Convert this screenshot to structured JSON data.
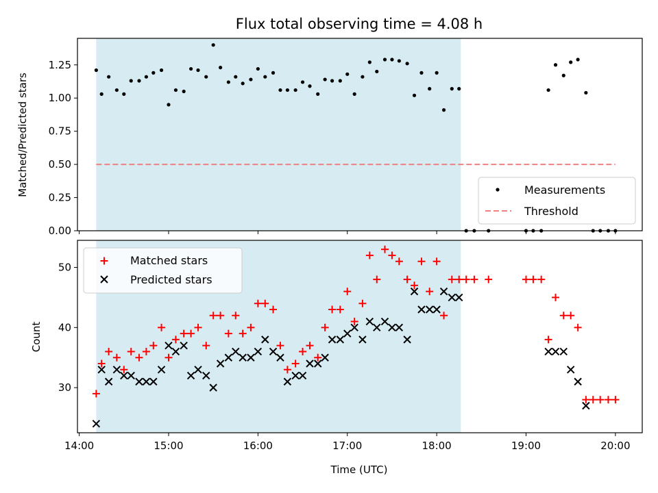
{
  "chart_data": [
    {
      "type": "scatter",
      "panel": "top",
      "title": "Flux total observing time = 4.08 h",
      "xlabel": "",
      "ylabel": "Matched/Predicted stars",
      "xlim_hours": [
        13.98,
        20.3
      ],
      "ylim": [
        0.0,
        1.45
      ],
      "yticks": [
        0.0,
        0.25,
        0.5,
        0.75,
        1.0,
        1.25
      ],
      "ytick_labels": [
        "0.00",
        "0.25",
        "0.50",
        "0.75",
        "1.00",
        "1.25"
      ],
      "shaded_span_hours": [
        14.19,
        18.27
      ],
      "threshold": {
        "y": 0.5,
        "x_range": [
          14.19,
          20.0
        ],
        "color": "#f08080"
      },
      "legend_position": "lower right",
      "legend": [
        {
          "label": "Measurements",
          "marker": "dot",
          "color": "#000000"
        },
        {
          "label": "Threshold",
          "marker": "dashed-line",
          "color": "#f08080"
        }
      ],
      "series": [
        {
          "name": "Measurements",
          "color": "#000000",
          "x": [
            14.19,
            14.25,
            14.33,
            14.42,
            14.5,
            14.58,
            14.67,
            14.75,
            14.83,
            14.92,
            15.0,
            15.08,
            15.17,
            15.25,
            15.33,
            15.42,
            15.5,
            15.58,
            15.67,
            15.75,
            15.83,
            15.92,
            16.0,
            16.08,
            16.17,
            16.25,
            16.33,
            16.42,
            16.5,
            16.58,
            16.67,
            16.75,
            16.83,
            16.92,
            17.0,
            17.08,
            17.17,
            17.25,
            17.33,
            17.42,
            17.5,
            17.58,
            17.67,
            17.75,
            17.83,
            17.92,
            18.0,
            18.08,
            18.17,
            18.25,
            18.33,
            18.42,
            18.58,
            19.0,
            19.08,
            19.17,
            19.25,
            19.33,
            19.42,
            19.5,
            19.58,
            19.67,
            19.75,
            19.83,
            19.92,
            20.0
          ],
          "y": [
            1.21,
            1.03,
            1.16,
            1.06,
            1.03,
            1.13,
            1.13,
            1.16,
            1.19,
            1.21,
            0.95,
            1.06,
            1.05,
            1.22,
            1.21,
            1.16,
            1.4,
            1.23,
            1.12,
            1.16,
            1.11,
            1.14,
            1.22,
            1.16,
            1.19,
            1.06,
            1.06,
            1.06,
            1.12,
            1.09,
            1.03,
            1.14,
            1.13,
            1.13,
            1.18,
            1.03,
            1.16,
            1.27,
            1.2,
            1.29,
            1.29,
            1.28,
            1.26,
            1.02,
            1.19,
            1.07,
            1.19,
            0.91,
            1.07,
            1.07,
            0.0,
            0.0,
            0.0,
            0.0,
            0.0,
            0.0,
            1.06,
            1.25,
            1.17,
            1.27,
            1.29,
            1.04,
            0.0,
            0.0,
            0.0,
            0.0
          ]
        }
      ]
    },
    {
      "type": "scatter",
      "panel": "bottom",
      "title": "",
      "xlabel": "Time (UTC)",
      "ylabel": "Count",
      "xlim_hours": [
        13.98,
        20.3
      ],
      "ylim": [
        22.5,
        54.5
      ],
      "yticks": [
        30,
        40,
        50
      ],
      "ytick_labels": [
        "30",
        "40",
        "50"
      ],
      "xticks_hours": [
        14,
        15,
        16,
        17,
        18,
        19,
        20
      ],
      "xtick_labels": [
        "14:00",
        "15:00",
        "16:00",
        "17:00",
        "18:00",
        "19:00",
        "20:00"
      ],
      "shaded_span_hours": [
        14.19,
        18.27
      ],
      "legend_position": "upper left",
      "legend": [
        {
          "label": "Matched stars",
          "marker": "plus",
          "color": "#ff0000"
        },
        {
          "label": "Predicted stars",
          "marker": "x",
          "color": "#000000"
        }
      ],
      "series": [
        {
          "name": "Matched stars",
          "marker": "plus",
          "color": "#ff0000",
          "x": [
            14.19,
            14.25,
            14.33,
            14.42,
            14.5,
            14.58,
            14.67,
            14.75,
            14.83,
            14.92,
            15.0,
            15.08,
            15.17,
            15.25,
            15.33,
            15.42,
            15.5,
            15.58,
            15.67,
            15.75,
            15.83,
            15.92,
            16.0,
            16.08,
            16.17,
            16.25,
            16.33,
            16.42,
            16.5,
            16.58,
            16.67,
            16.75,
            16.83,
            16.92,
            17.0,
            17.08,
            17.17,
            17.25,
            17.33,
            17.42,
            17.5,
            17.58,
            17.67,
            17.75,
            17.83,
            17.92,
            18.0,
            18.08,
            18.17,
            18.25,
            18.33,
            18.42,
            18.58,
            19.0,
            19.08,
            19.17,
            19.25,
            19.33,
            19.42,
            19.5,
            19.58,
            19.67,
            19.75,
            19.83,
            19.92,
            20.0
          ],
          "y": [
            29,
            34,
            36,
            35,
            33,
            36,
            35,
            36,
            37,
            40,
            35,
            38,
            39,
            39,
            40,
            37,
            42,
            42,
            39,
            42,
            39,
            40,
            44,
            44,
            43,
            37,
            33,
            34,
            36,
            37,
            35,
            40,
            43,
            43,
            46,
            41,
            44,
            52,
            48,
            53,
            52,
            51,
            48,
            47,
            51,
            46,
            51,
            42,
            48,
            48,
            48,
            48,
            48,
            48,
            48,
            48,
            38,
            45,
            42,
            42,
            40,
            28,
            28,
            28,
            28,
            28
          ]
        },
        {
          "name": "Predicted stars",
          "marker": "x",
          "color": "#000000",
          "x": [
            14.19,
            14.25,
            14.33,
            14.42,
            14.5,
            14.58,
            14.67,
            14.75,
            14.83,
            14.92,
            15.0,
            15.08,
            15.17,
            15.25,
            15.33,
            15.42,
            15.5,
            15.58,
            15.67,
            15.75,
            15.83,
            15.92,
            16.0,
            16.08,
            16.17,
            16.25,
            16.33,
            16.42,
            16.5,
            16.58,
            16.67,
            16.75,
            16.83,
            16.92,
            17.0,
            17.08,
            17.17,
            17.25,
            17.33,
            17.42,
            17.5,
            17.58,
            17.67,
            17.75,
            17.83,
            17.92,
            18.0,
            18.08,
            18.17,
            18.25,
            19.25,
            19.33,
            19.42,
            19.5,
            19.58,
            19.67
          ],
          "y": [
            24,
            33,
            31,
            33,
            32,
            32,
            31,
            31,
            31,
            33,
            37,
            36,
            37,
            32,
            33,
            32,
            30,
            34,
            35,
            36,
            35,
            35,
            36,
            38,
            36,
            35,
            31,
            32,
            32,
            34,
            34,
            35,
            38,
            38,
            39,
            40,
            38,
            41,
            40,
            41,
            40,
            40,
            38,
            46,
            43,
            43,
            43,
            46,
            45,
            45,
            36,
            36,
            36,
            33,
            31,
            27
          ]
        }
      ]
    }
  ]
}
